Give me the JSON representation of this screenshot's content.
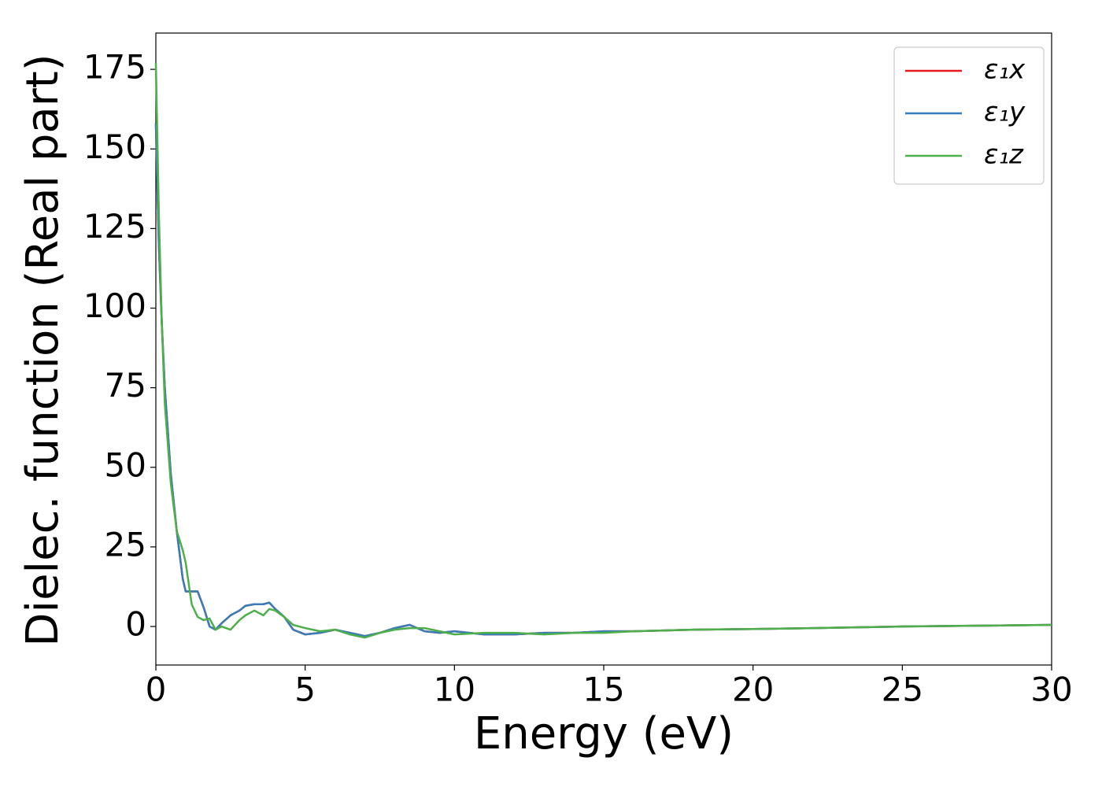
{
  "chart_data": {
    "type": "line",
    "x_label": "Energy (eV)",
    "y_label": "Dielec. function (Real part)",
    "x": [
      0,
      0.1,
      0.2,
      0.3,
      0.5,
      0.7,
      0.9,
      1.0,
      1.2,
      1.4,
      1.6,
      1.8,
      2.0,
      2.2,
      2.5,
      2.8,
      3.0,
      3.3,
      3.6,
      3.8,
      4.0,
      4.3,
      4.6,
      5.0,
      5.5,
      6,
      6.5,
      7,
      7.5,
      8,
      8.5,
      9,
      9.5,
      10,
      11,
      12,
      13,
      14,
      15,
      16,
      18,
      20,
      22,
      25,
      28,
      30
    ],
    "series": [
      {
        "name": "ε₁x",
        "color": "#e41a1c",
        "values": [
          158,
          120,
          95,
          75,
          48,
          30,
          15,
          11,
          11,
          11,
          6,
          0,
          -1,
          1,
          3.5,
          5,
          6.5,
          7,
          7,
          7.5,
          5.5,
          3,
          -1,
          -2.5,
          -2,
          -1,
          -2,
          -3,
          -2,
          -0.5,
          0.5,
          -1.5,
          -2,
          -1.5,
          -2.5,
          -2.5,
          -2,
          -2,
          -1.5,
          -1.5,
          -1,
          -0.8,
          -0.5,
          0,
          0.3,
          0.5
        ]
      },
      {
        "name": "ε₁y",
        "color": "#377eb8",
        "values": [
          158,
          120,
          95,
          75,
          48,
          30,
          15,
          11,
          11,
          11,
          6,
          0,
          -1,
          1,
          3.5,
          5,
          6.5,
          7,
          7,
          7.5,
          5.5,
          3,
          -1,
          -2.5,
          -2,
          -1,
          -2,
          -3,
          -2,
          -0.5,
          0.5,
          -1.5,
          -2,
          -1.5,
          -2.5,
          -2.5,
          -2,
          -2,
          -1.5,
          -1.5,
          -1,
          -0.8,
          -0.5,
          0,
          0.3,
          0.5
        ]
      },
      {
        "name": "ε₁z",
        "color": "#4daf4a",
        "values": [
          177,
          130,
          95,
          70,
          45,
          30,
          24,
          20,
          7,
          3,
          2,
          2.5,
          -1,
          0,
          -1,
          2,
          3.5,
          5,
          3.5,
          5.5,
          5,
          3,
          0.5,
          -0.5,
          -1.5,
          -1,
          -2.5,
          -3.5,
          -2,
          -1,
          -0.5,
          -0.5,
          -1.5,
          -2.5,
          -2,
          -2,
          -2.5,
          -2,
          -2,
          -1.5,
          -1,
          -0.8,
          -0.5,
          0,
          0.3,
          0.5
        ]
      }
    ],
    "xlim": [
      0,
      30
    ],
    "xticks": [
      0,
      5,
      10,
      15,
      20,
      25,
      30
    ],
    "ylim": [
      -12.1,
      186.4
    ],
    "yticks": [
      0,
      25,
      50,
      75,
      100,
      125,
      150,
      175
    ],
    "legend": "upper right",
    "grid": false
  }
}
